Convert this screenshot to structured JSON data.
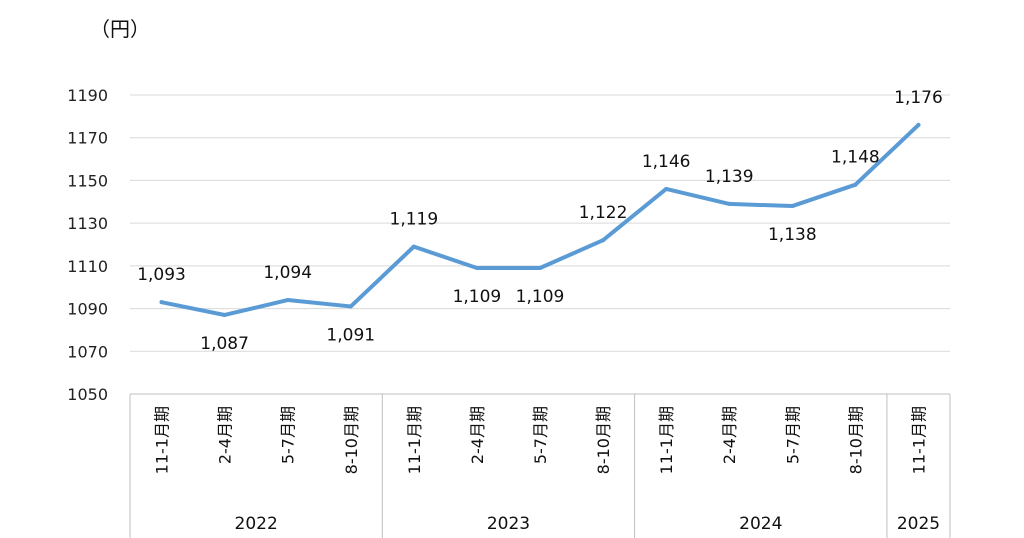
{
  "chart_data": {
    "type": "line",
    "unit_label": "（円）",
    "categories": [
      "11-1月期",
      "2-4月期",
      "5-7月期",
      "8-10月期",
      "11-1月期",
      "2-4月期",
      "5-7月期",
      "8-10月期",
      "11-1月期",
      "2-4月期",
      "5-7月期",
      "8-10月期",
      "11-1月期"
    ],
    "groups": [
      {
        "label": "2022",
        "count": 4
      },
      {
        "label": "2023",
        "count": 4
      },
      {
        "label": "2024",
        "count": 4
      },
      {
        "label": "2025",
        "count": 1
      }
    ],
    "series": [
      {
        "values": [
          1093,
          1087,
          1094,
          1091,
          1119,
          1109,
          1109,
          1122,
          1146,
          1139,
          1138,
          1148,
          1176
        ],
        "value_labels": [
          "1,093",
          "1,087",
          "1,094",
          "1,091",
          "1,119",
          "1,109",
          "1,109",
          "1,122",
          "1,146",
          "1,139",
          "1,138",
          "1,148",
          "1,176"
        ],
        "label_positions": [
          "above",
          "below",
          "above",
          "below",
          "above",
          "below",
          "below",
          "above",
          "above",
          "above",
          "below",
          "above",
          "above"
        ],
        "color": "#5b9bd5"
      }
    ],
    "ylim": [
      1050,
      1190
    ],
    "yticks": [
      1050,
      1070,
      1090,
      1110,
      1130,
      1150,
      1170,
      1190
    ],
    "grid": true,
    "legend": "none"
  }
}
